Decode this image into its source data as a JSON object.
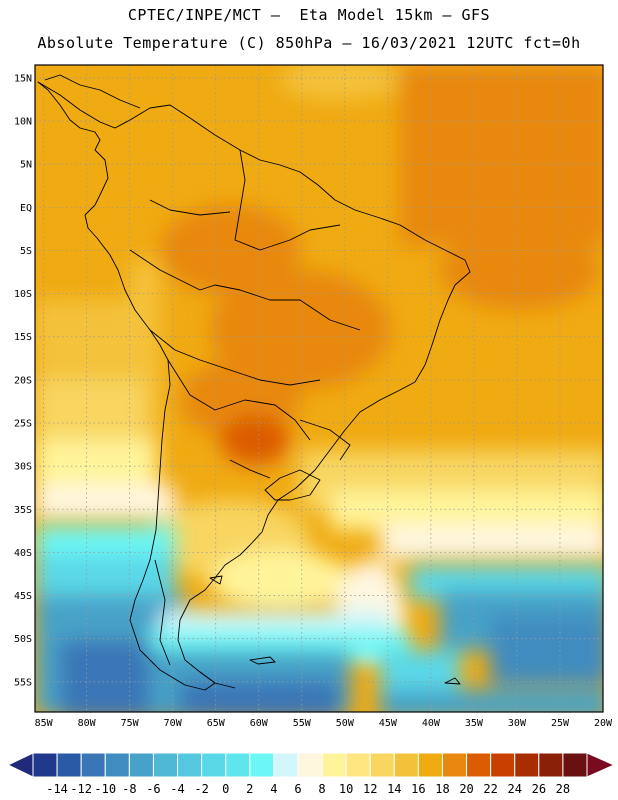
{
  "header": {
    "line1": "CPTEC/INPE/MCT –  Eta Model 15km – GFS",
    "line2": "Absolute Temperature (C) 850hPa – 16/03/2021 12UTC fct=0h"
  },
  "map": {
    "lat_labels": [
      "15N",
      "10N",
      "5N",
      "EQ",
      "5S",
      "10S",
      "15S",
      "20S",
      "25S",
      "30S",
      "35S",
      "40S",
      "45S",
      "50S",
      "55S"
    ],
    "lon_labels": [
      "85W",
      "80W",
      "75W",
      "70W",
      "65W",
      "60W",
      "55W",
      "50W",
      "45W",
      "40W",
      "35W",
      "30W",
      "25W",
      "20W"
    ],
    "lat_values": [
      15,
      10,
      5,
      0,
      -5,
      -10,
      -15,
      -20,
      -25,
      -30,
      -35,
      -40,
      -45,
      -50,
      -55
    ],
    "lon_values": [
      -85,
      -80,
      -75,
      -70,
      -65,
      -60,
      -55,
      -50,
      -45,
      -40,
      -35,
      -30,
      -25,
      -20
    ],
    "extent": {
      "lon": [
        -86,
        -20
      ],
      "lat": [
        -58.5,
        16.5
      ]
    }
  },
  "colorbar": {
    "labels": [
      "-14",
      "-12",
      "-10",
      "-8",
      "-6",
      "-4",
      "-2",
      "0",
      "2",
      "4",
      "6",
      "8",
      "10",
      "12",
      "14",
      "16",
      "18",
      "20",
      "22",
      "24",
      "26",
      "28"
    ],
    "colors": [
      "#1f3a8c",
      "#2a5aa6",
      "#3a76b6",
      "#3f8cc0",
      "#46a2c8",
      "#4fb8d4",
      "#55c8e0",
      "#5ad8e8",
      "#5ee6ec",
      "#6cf7f4",
      "#d2f6fa",
      "#fff6e0",
      "#fff49a",
      "#ffe680",
      "#f8d660",
      "#f4c23a",
      "#f0aa12",
      "#e8880e",
      "#dc5c04",
      "#c84000",
      "#a82e00",
      "#8a2008",
      "#6a1010"
    ],
    "under_color": "#1f2a7a",
    "over_color": "#7a0a1e"
  }
}
